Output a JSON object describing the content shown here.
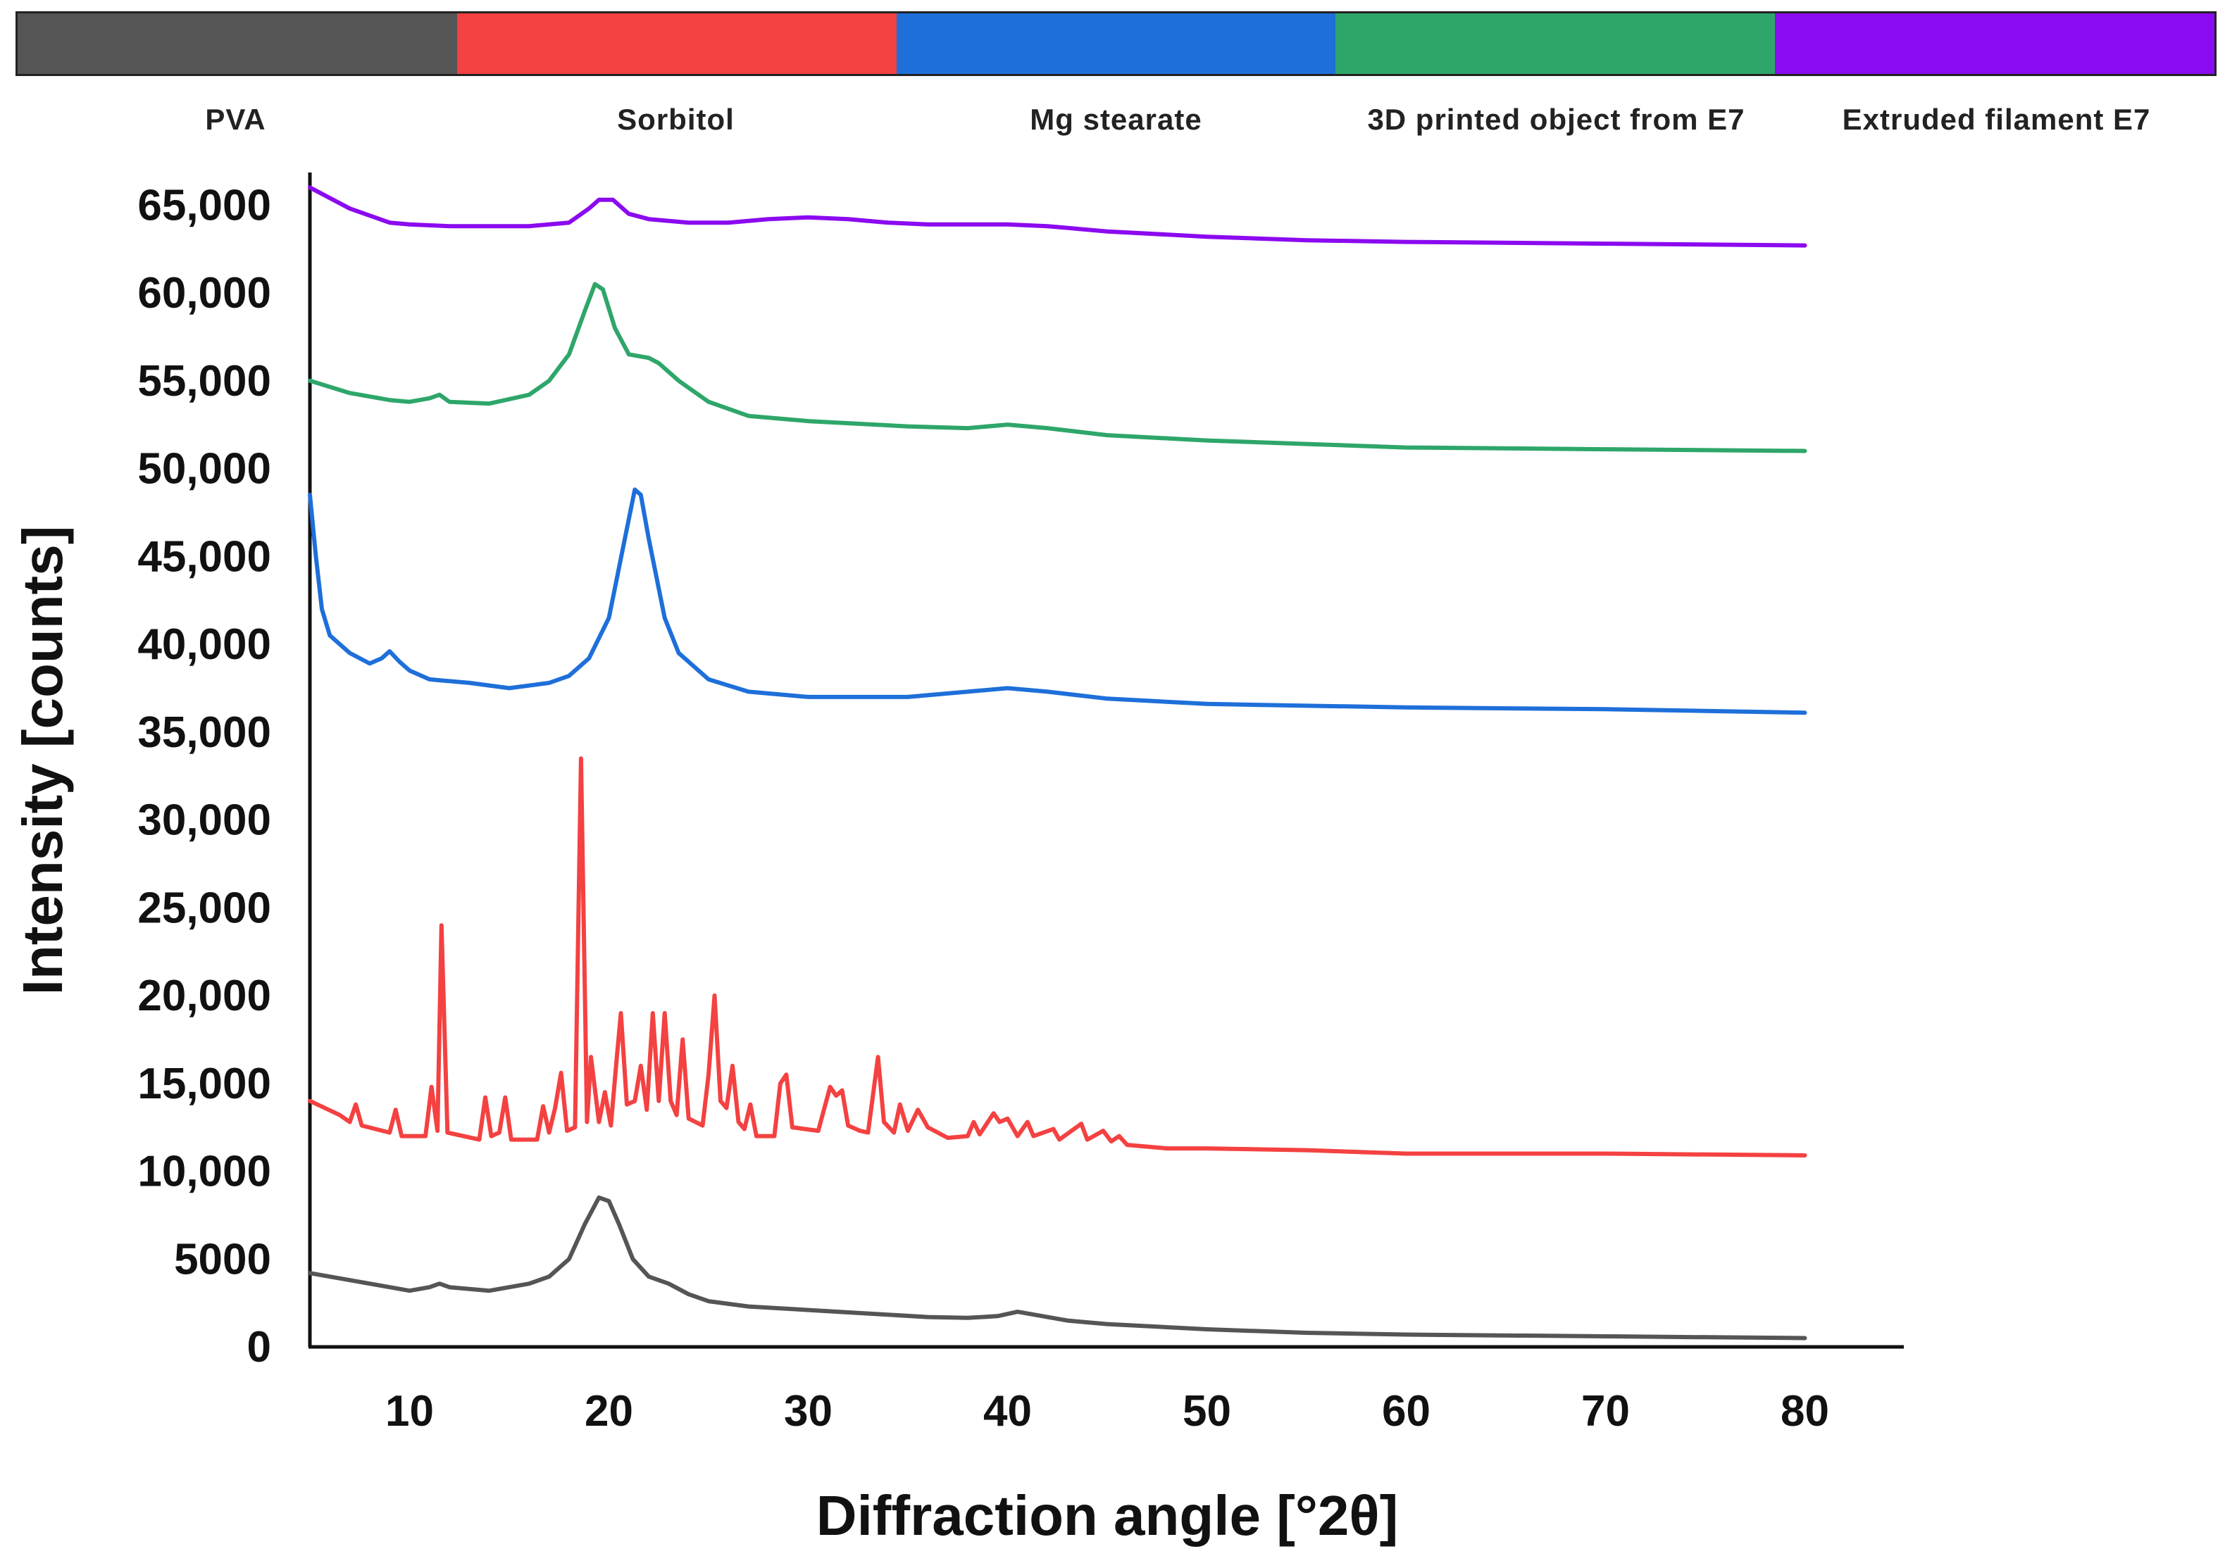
{
  "chart_data": {
    "type": "line",
    "xlabel": "Diffraction angle [°2θ]",
    "ylabel": "Intensity [counts]",
    "xlim": [
      5,
      85
    ],
    "ylim": [
      0,
      67000
    ],
    "x_ticks": [
      10,
      20,
      30,
      40,
      50,
      60,
      70,
      80
    ],
    "x_tick_labels": [
      "10",
      "20",
      "30",
      "40",
      "50",
      "60",
      "70",
      "80"
    ],
    "y_ticks": [
      0,
      5000,
      10000,
      15000,
      20000,
      25000,
      30000,
      35000,
      40000,
      45000,
      50000,
      55000,
      60000,
      65000
    ],
    "y_tick_labels": [
      "0",
      "5000",
      "10,000",
      "15,000",
      "20,000",
      "25,000",
      "30,000",
      "35,000",
      "40,000",
      "45,000",
      "50,000",
      "55,000",
      "60,000",
      "65,000"
    ],
    "legend_position": "top",
    "series": [
      {
        "name": "PVA",
        "color": "#555555",
        "points": [
          [
            5,
            4200
          ],
          [
            7,
            3800
          ],
          [
            9,
            3400
          ],
          [
            10,
            3200
          ],
          [
            11,
            3400
          ],
          [
            11.5,
            3600
          ],
          [
            12,
            3400
          ],
          [
            14,
            3200
          ],
          [
            16,
            3600
          ],
          [
            17,
            4000
          ],
          [
            18,
            5000
          ],
          [
            18.8,
            7000
          ],
          [
            19.5,
            8500
          ],
          [
            20,
            8300
          ],
          [
            20.5,
            7000
          ],
          [
            21.2,
            5000
          ],
          [
            22,
            4000
          ],
          [
            23,
            3600
          ],
          [
            24,
            3000
          ],
          [
            25,
            2600
          ],
          [
            27,
            2300
          ],
          [
            30,
            2100
          ],
          [
            33,
            1900
          ],
          [
            36,
            1700
          ],
          [
            38,
            1650
          ],
          [
            39.5,
            1750
          ],
          [
            40.5,
            2000
          ],
          [
            41.5,
            1800
          ],
          [
            43,
            1500
          ],
          [
            45,
            1300
          ],
          [
            50,
            1000
          ],
          [
            55,
            800
          ],
          [
            60,
            700
          ],
          [
            70,
            600
          ],
          [
            80,
            500
          ]
        ]
      },
      {
        "name": "Sorbitol",
        "color": "#f44141",
        "points": [
          [
            5,
            14000
          ],
          [
            6.5,
            13200
          ],
          [
            7,
            12800
          ],
          [
            7.3,
            13800
          ],
          [
            7.6,
            12600
          ],
          [
            9,
            12200
          ],
          [
            9.3,
            13500
          ],
          [
            9.6,
            12000
          ],
          [
            10.8,
            12000
          ],
          [
            11.1,
            14800
          ],
          [
            11.4,
            12300
          ],
          [
            11.6,
            24000
          ],
          [
            11.9,
            12200
          ],
          [
            13.5,
            11800
          ],
          [
            13.8,
            14200
          ],
          [
            14.1,
            12000
          ],
          [
            14.5,
            12200
          ],
          [
            14.8,
            14200
          ],
          [
            15.1,
            11800
          ],
          [
            16.4,
            11800
          ],
          [
            16.7,
            13700
          ],
          [
            17,
            12200
          ],
          [
            17.3,
            13600
          ],
          [
            17.6,
            15600
          ],
          [
            17.9,
            12300
          ],
          [
            18.3,
            12500
          ],
          [
            18.6,
            33500
          ],
          [
            18.9,
            12800
          ],
          [
            19.1,
            16500
          ],
          [
            19.5,
            12800
          ],
          [
            19.8,
            14500
          ],
          [
            20.1,
            12600
          ],
          [
            20.4,
            16500
          ],
          [
            20.6,
            19000
          ],
          [
            20.9,
            13800
          ],
          [
            21.3,
            14000
          ],
          [
            21.6,
            16000
          ],
          [
            21.9,
            13500
          ],
          [
            22.2,
            19000
          ],
          [
            22.5,
            14000
          ],
          [
            22.8,
            19000
          ],
          [
            23.1,
            14000
          ],
          [
            23.4,
            13200
          ],
          [
            23.7,
            17500
          ],
          [
            24,
            13000
          ],
          [
            24.7,
            12600
          ],
          [
            25,
            15500
          ],
          [
            25.3,
            20000
          ],
          [
            25.6,
            14000
          ],
          [
            25.9,
            13600
          ],
          [
            26.2,
            16000
          ],
          [
            26.5,
            12800
          ],
          [
            26.8,
            12400
          ],
          [
            27.1,
            13800
          ],
          [
            27.4,
            12000
          ],
          [
            28.3,
            12000
          ],
          [
            28.6,
            15000
          ],
          [
            28.9,
            15500
          ],
          [
            29.2,
            12500
          ],
          [
            30.5,
            12300
          ],
          [
            31.1,
            14800
          ],
          [
            31.4,
            14300
          ],
          [
            31.7,
            14600
          ],
          [
            32,
            12600
          ],
          [
            32.6,
            12300
          ],
          [
            33,
            12200
          ],
          [
            33.5,
            16500
          ],
          [
            33.8,
            12800
          ],
          [
            34.3,
            12200
          ],
          [
            34.6,
            13800
          ],
          [
            35,
            12300
          ],
          [
            35.5,
            13500
          ],
          [
            36,
            12500
          ],
          [
            37,
            11900
          ],
          [
            38,
            12000
          ],
          [
            38.3,
            12800
          ],
          [
            38.6,
            12100
          ],
          [
            39.3,
            13300
          ],
          [
            39.6,
            12800
          ],
          [
            40,
            13000
          ],
          [
            40.5,
            12000
          ],
          [
            41,
            12800
          ],
          [
            41.3,
            12000
          ],
          [
            42.3,
            12400
          ],
          [
            42.6,
            11800
          ],
          [
            43.7,
            12700
          ],
          [
            44,
            11800
          ],
          [
            44.8,
            12300
          ],
          [
            45.2,
            11700
          ],
          [
            45.6,
            12000
          ],
          [
            46,
            11500
          ],
          [
            48,
            11300
          ],
          [
            50,
            11300
          ],
          [
            55,
            11200
          ],
          [
            60,
            11000
          ],
          [
            70,
            11000
          ],
          [
            80,
            10900
          ]
        ]
      },
      {
        "name": "Mg stearate",
        "color": "#1e6fd9",
        "points": [
          [
            5,
            48500
          ],
          [
            5.3,
            45000
          ],
          [
            5.6,
            42000
          ],
          [
            6,
            40500
          ],
          [
            7,
            39500
          ],
          [
            8,
            38900
          ],
          [
            8.6,
            39200
          ],
          [
            9,
            39600
          ],
          [
            9.5,
            39000
          ],
          [
            10,
            38500
          ],
          [
            11,
            38000
          ],
          [
            13,
            37800
          ],
          [
            15,
            37500
          ],
          [
            17,
            37800
          ],
          [
            18,
            38200
          ],
          [
            19,
            39200
          ],
          [
            20,
            41500
          ],
          [
            20.8,
            46000
          ],
          [
            21.3,
            48800
          ],
          [
            21.6,
            48500
          ],
          [
            22,
            46000
          ],
          [
            22.8,
            41500
          ],
          [
            23.5,
            39500
          ],
          [
            25,
            38000
          ],
          [
            27,
            37300
          ],
          [
            30,
            37000
          ],
          [
            35,
            37000
          ],
          [
            38,
            37300
          ],
          [
            40,
            37500
          ],
          [
            42,
            37300
          ],
          [
            45,
            36900
          ],
          [
            50,
            36600
          ],
          [
            60,
            36400
          ],
          [
            70,
            36300
          ],
          [
            80,
            36100
          ]
        ]
      },
      {
        "name": "3D printed object from E7",
        "color": "#2ea66a",
        "points": [
          [
            5,
            55000
          ],
          [
            7,
            54300
          ],
          [
            9,
            53900
          ],
          [
            10,
            53800
          ],
          [
            11,
            54000
          ],
          [
            11.5,
            54200
          ],
          [
            12,
            53800
          ],
          [
            14,
            53700
          ],
          [
            16,
            54200
          ],
          [
            17,
            55000
          ],
          [
            18,
            56500
          ],
          [
            18.8,
            59000
          ],
          [
            19.3,
            60500
          ],
          [
            19.7,
            60200
          ],
          [
            20.3,
            58000
          ],
          [
            21,
            56500
          ],
          [
            22,
            56300
          ],
          [
            22.5,
            56000
          ],
          [
            23.5,
            55000
          ],
          [
            25,
            53800
          ],
          [
            27,
            53000
          ],
          [
            30,
            52700
          ],
          [
            35,
            52400
          ],
          [
            38,
            52300
          ],
          [
            40,
            52500
          ],
          [
            42,
            52300
          ],
          [
            45,
            51900
          ],
          [
            50,
            51600
          ],
          [
            55,
            51400
          ],
          [
            60,
            51200
          ],
          [
            70,
            51100
          ],
          [
            80,
            51000
          ]
        ]
      },
      {
        "name": "Extruded filament E7",
        "color": "#8b0aef",
        "points": [
          [
            5,
            66000
          ],
          [
            7,
            64800
          ],
          [
            9,
            64000
          ],
          [
            10,
            63900
          ],
          [
            12,
            63800
          ],
          [
            14,
            63800
          ],
          [
            16,
            63800
          ],
          [
            18,
            64000
          ],
          [
            19,
            64800
          ],
          [
            19.5,
            65300
          ],
          [
            20.2,
            65300
          ],
          [
            21,
            64500
          ],
          [
            22,
            64200
          ],
          [
            24,
            64000
          ],
          [
            26,
            64000
          ],
          [
            28,
            64200
          ],
          [
            30,
            64300
          ],
          [
            32,
            64200
          ],
          [
            34,
            64000
          ],
          [
            36,
            63900
          ],
          [
            38,
            63900
          ],
          [
            40,
            63900
          ],
          [
            42,
            63800
          ],
          [
            45,
            63500
          ],
          [
            50,
            63200
          ],
          [
            55,
            63000
          ],
          [
            60,
            62900
          ],
          [
            70,
            62800
          ],
          [
            80,
            62700
          ]
        ]
      }
    ]
  }
}
